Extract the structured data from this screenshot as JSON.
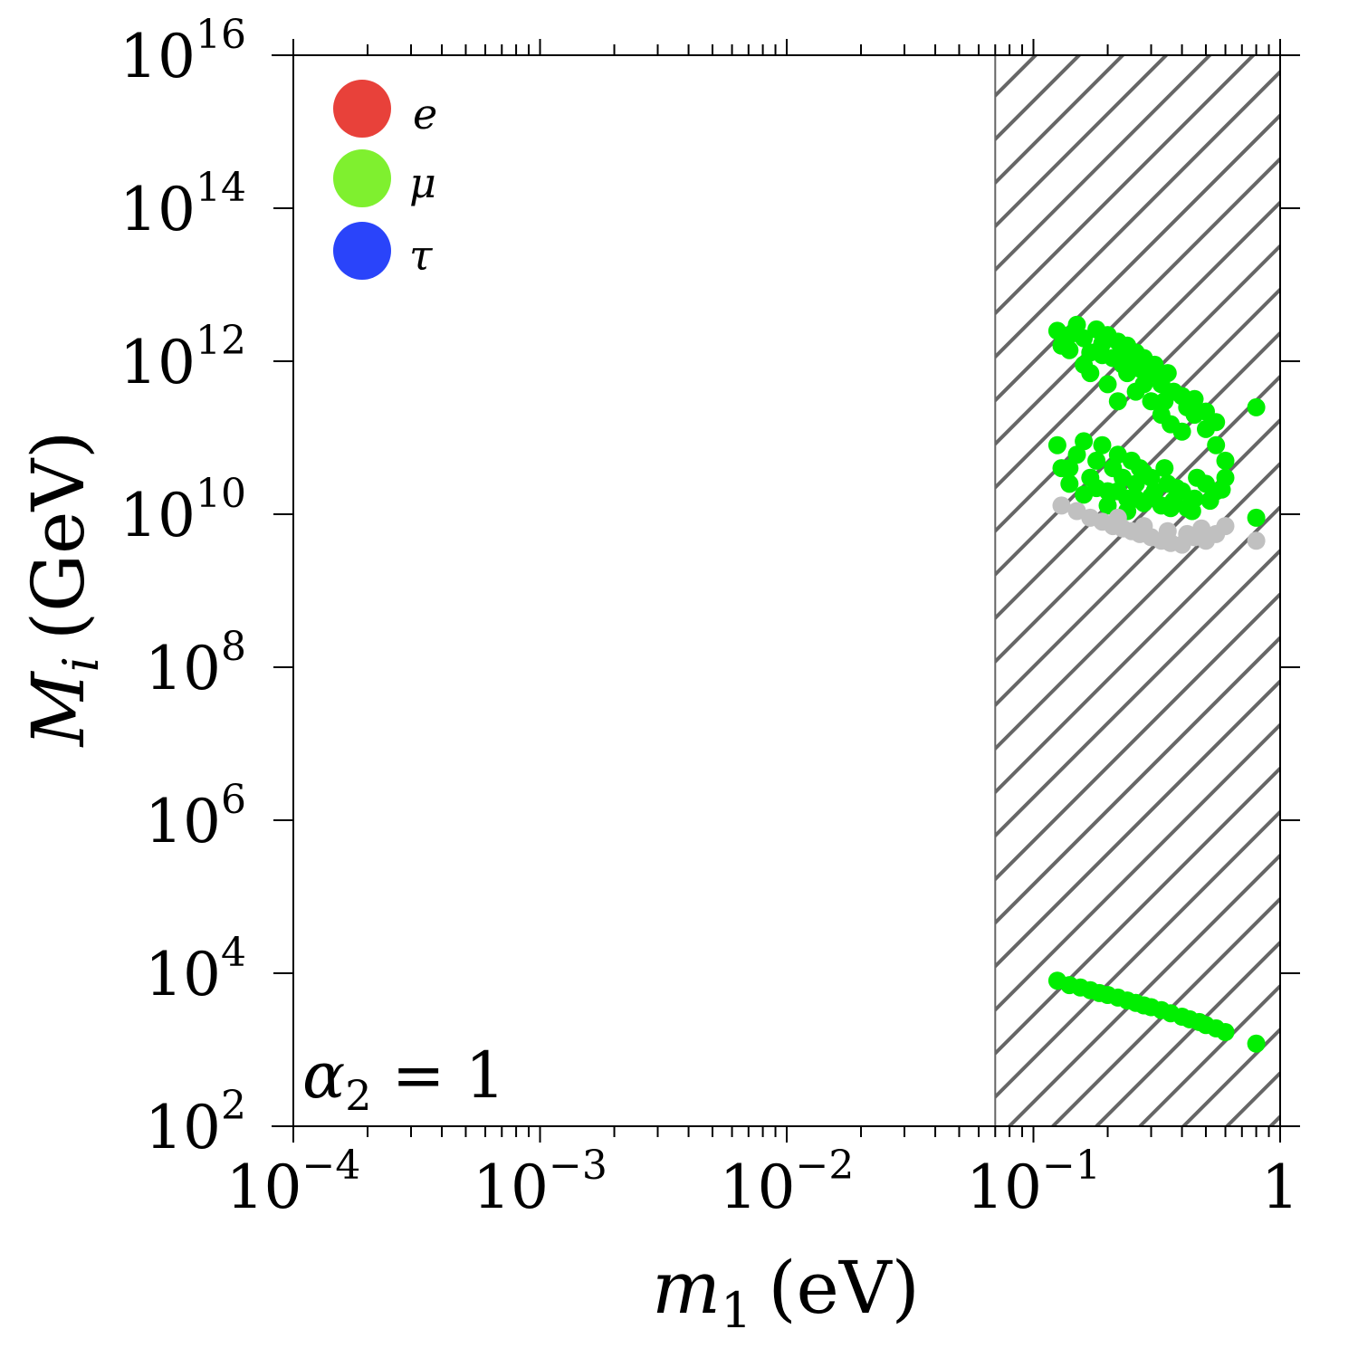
{
  "chart_data": {
    "type": "scatter",
    "xlabel": "m",
    "xlabel_sub": "1",
    "xlabel_unit": "(eV)",
    "ylabel": "M",
    "ylabel_sub": "i",
    "ylabel_unit": "(GeV)",
    "xscale": "log",
    "yscale": "log",
    "xlim": [
      0.0001,
      1
    ],
    "ylim": [
      100,
      1e+16
    ],
    "x_ticks": [
      {
        "value": 0.0001,
        "base": "10",
        "exp": "−4"
      },
      {
        "value": 0.001,
        "base": "10",
        "exp": "−3"
      },
      {
        "value": 0.01,
        "base": "10",
        "exp": "−2"
      },
      {
        "value": 0.1,
        "base": "10",
        "exp": "−1"
      },
      {
        "value": 1,
        "base": "1",
        "exp": ""
      }
    ],
    "y_ticks": [
      {
        "value": 100,
        "base": "10",
        "exp": "2"
      },
      {
        "value": 10000,
        "base": "10",
        "exp": "4"
      },
      {
        "value": 1000000,
        "base": "10",
        "exp": "6"
      },
      {
        "value": 100000000,
        "base": "10",
        "exp": "8"
      },
      {
        "value": 10000000000,
        "base": "10",
        "exp": "10"
      },
      {
        "value": 1000000000000,
        "base": "10",
        "exp": "12"
      },
      {
        "value": 100000000000000,
        "base": "10",
        "exp": "14"
      },
      {
        "value": 10000000000000000,
        "base": "10",
        "exp": "16"
      }
    ],
    "grid": false,
    "legend_position": "top-left",
    "legend": [
      {
        "label": "e",
        "color": "#e8413a"
      },
      {
        "label": "μ",
        "color": "#7ff02f"
      },
      {
        "label": "τ",
        "color": "#2a44fa"
      }
    ],
    "excluded_region": {
      "x_from": 0.07,
      "x_to": 1,
      "pattern": "diagonal-hatch",
      "color": "#666666"
    },
    "annotation": {
      "symbol": "α",
      "sub": "2",
      "rest": " = 1",
      "position": "bottom-left"
    },
    "series": [
      {
        "color": "#00ee00",
        "points": [
          [
            0.125,
            2500000000000.0
          ],
          [
            0.13,
            1600000000000.0
          ],
          [
            0.14,
            2200000000000.0
          ],
          [
            0.15,
            3000000000000.0
          ],
          [
            0.16,
            2000000000000.0
          ],
          [
            0.17,
            1300000000000.0
          ],
          [
            0.18,
            2600000000000.0
          ],
          [
            0.19,
            1700000000000.0
          ],
          [
            0.2,
            2200000000000.0
          ],
          [
            0.21,
            1100000000000.0
          ],
          [
            0.22,
            1800000000000.0
          ],
          [
            0.23,
            1300000000000.0
          ],
          [
            0.24,
            1600000000000.0
          ],
          [
            0.25,
            900000000000.0
          ],
          [
            0.26,
            1300000000000.0
          ],
          [
            0.27,
            800000000000.0
          ],
          [
            0.28,
            1100000000000.0
          ],
          [
            0.3,
            700000000000.0
          ],
          [
            0.31,
            900000000000.0
          ],
          [
            0.33,
            500000000000.0
          ],
          [
            0.35,
            700000000000.0
          ],
          [
            0.37,
            400000000000.0
          ],
          [
            0.4,
            350000000000.0
          ],
          [
            0.42,
            250000000000.0
          ],
          [
            0.45,
            200000000000.0
          ],
          [
            0.5,
            130000000000.0
          ],
          [
            0.55,
            80000000000.0
          ],
          [
            0.6,
            50000000000.0
          ],
          [
            0.14,
            1400000000000.0
          ],
          [
            0.17,
            700000000000.0
          ],
          [
            0.2,
            500000000000.0
          ],
          [
            0.22,
            300000000000.0
          ],
          [
            0.24,
            700000000000.0
          ],
          [
            0.26,
            400000000000.0
          ],
          [
            0.3,
            300000000000.0
          ],
          [
            0.33,
            200000000000.0
          ],
          [
            0.36,
            150000000000.0
          ],
          [
            0.4,
            120000000000.0
          ],
          [
            0.16,
            900000000000.0
          ],
          [
            0.19,
            1200000000000.0
          ],
          [
            0.23,
            900000000000.0
          ],
          [
            0.28,
            500000000000.0
          ],
          [
            0.34,
            300000000000.0
          ],
          [
            0.45,
            320000000000.0
          ],
          [
            0.5,
            220000000000.0
          ],
          [
            0.55,
            160000000000.0
          ],
          [
            0.125,
            80000000000.0
          ],
          [
            0.13,
            40000000000.0
          ],
          [
            0.14,
            25000000000.0
          ],
          [
            0.15,
            60000000000.0
          ],
          [
            0.16,
            90000000000.0
          ],
          [
            0.17,
            30000000000.0
          ],
          [
            0.18,
            50000000000.0
          ],
          [
            0.19,
            80000000000.0
          ],
          [
            0.2,
            20000000000.0
          ],
          [
            0.21,
            40000000000.0
          ],
          [
            0.22,
            60000000000.0
          ],
          [
            0.23,
            30000000000.0
          ],
          [
            0.24,
            16000000000.0
          ],
          [
            0.25,
            50000000000.0
          ],
          [
            0.26,
            25000000000.0
          ],
          [
            0.27,
            40000000000.0
          ],
          [
            0.28,
            14000000000.0
          ],
          [
            0.3,
            30000000000.0
          ],
          [
            0.31,
            20000000000.0
          ],
          [
            0.33,
            13000000000.0
          ],
          [
            0.35,
            25000000000.0
          ],
          [
            0.37,
            15000000000.0
          ],
          [
            0.4,
            20000000000.0
          ],
          [
            0.42,
            12000000000.0
          ],
          [
            0.45,
            16000000000.0
          ],
          [
            0.5,
            25000000000.0
          ],
          [
            0.55,
            20000000000.0
          ],
          [
            0.6,
            30000000000.0
          ],
          [
            0.14,
            40000000000.0
          ],
          [
            0.18,
            22000000000.0
          ],
          [
            0.22,
            20000000000.0
          ],
          [
            0.26,
            16000000000.0
          ],
          [
            0.3,
            17000000000.0
          ],
          [
            0.38,
            22000000000.0
          ],
          [
            0.46,
            30000000000.0
          ],
          [
            0.52,
            15000000000.0
          ],
          [
            0.58,
            21000000000.0
          ],
          [
            0.2,
            13000000000.0
          ],
          [
            0.24,
            11000000000.0
          ],
          [
            0.36,
            12000000000.0
          ],
          [
            0.44,
            11000000000.0
          ],
          [
            0.16,
            18000000000.0
          ],
          [
            0.28,
            35000000000.0
          ],
          [
            0.34,
            40000000000.0
          ],
          [
            0.8,
            250000000000.0
          ],
          [
            0.8,
            9000000000.0
          ]
        ]
      },
      {
        "color": "#00ee00",
        "points": [
          [
            0.125,
            8000
          ],
          [
            0.14,
            7000
          ],
          [
            0.155,
            6500
          ],
          [
            0.17,
            6000
          ],
          [
            0.185,
            5500
          ],
          [
            0.2,
            5200
          ],
          [
            0.22,
            4800
          ],
          [
            0.24,
            4400
          ],
          [
            0.26,
            4100
          ],
          [
            0.28,
            3800
          ],
          [
            0.3,
            3600
          ],
          [
            0.33,
            3300
          ],
          [
            0.36,
            3000
          ],
          [
            0.4,
            2700
          ],
          [
            0.43,
            2500
          ],
          [
            0.47,
            2300
          ],
          [
            0.5,
            2100
          ],
          [
            0.55,
            1900
          ],
          [
            0.6,
            1700
          ],
          [
            0.8,
            1200
          ]
        ]
      },
      {
        "color": "#c0c0c0",
        "points": [
          [
            0.13,
            13000000000.0
          ],
          [
            0.15,
            11000000000.0
          ],
          [
            0.17,
            9000000000.0
          ],
          [
            0.19,
            8000000000.0
          ],
          [
            0.21,
            7000000000.0
          ],
          [
            0.23,
            6500000000.0
          ],
          [
            0.25,
            6000000000.0
          ],
          [
            0.27,
            5500000000.0
          ],
          [
            0.3,
            5000000000.0
          ],
          [
            0.33,
            4500000000.0
          ],
          [
            0.36,
            4200000000.0
          ],
          [
            0.4,
            4000000000.0
          ],
          [
            0.45,
            5000000000.0
          ],
          [
            0.5,
            4500000000.0
          ],
          [
            0.55,
            5500000000.0
          ],
          [
            0.6,
            7000000000.0
          ],
          [
            0.8,
            4500000000.0
          ],
          [
            0.22,
            9000000000.0
          ],
          [
            0.28,
            7000000000.0
          ],
          [
            0.35,
            6000000000.0
          ],
          [
            0.42,
            5500000000.0
          ],
          [
            0.48,
            6500000000.0
          ]
        ]
      }
    ]
  }
}
